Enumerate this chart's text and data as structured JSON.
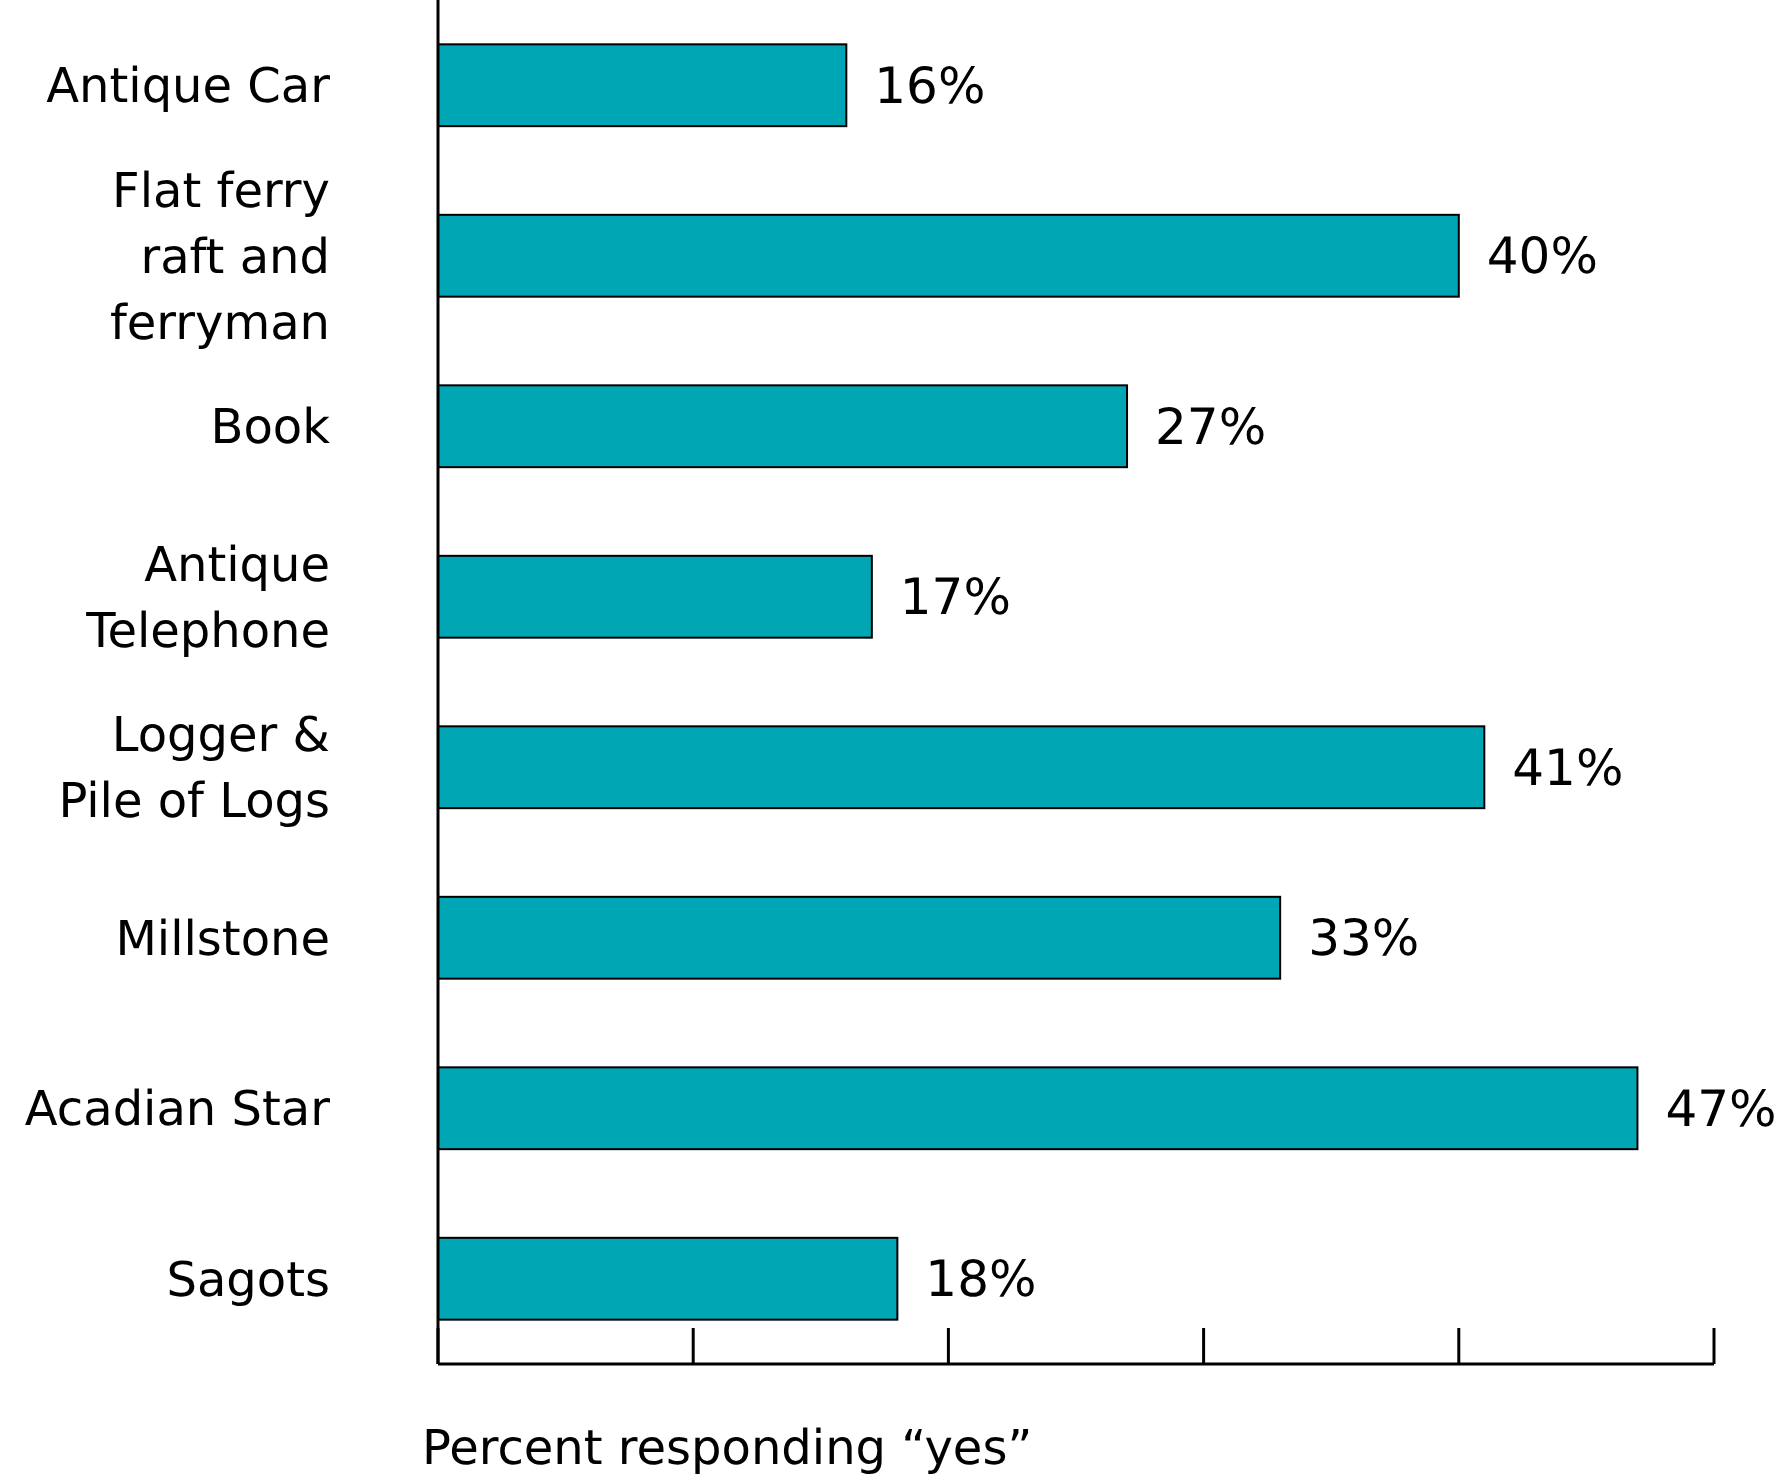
{
  "chart_data": {
    "type": "bar",
    "orientation": "horizontal",
    "xlabel": "Percent responding “yes”",
    "categories": [
      "Antique Car",
      "Flat ferry raft and ferryman",
      "Book",
      "Antique Telephone",
      "Logger & Pile of Logs",
      "Millstone",
      "Acadian Star",
      "Sagots"
    ],
    "values": [
      16,
      40,
      27,
      17,
      41,
      33,
      47,
      18
    ],
    "value_labels": [
      "16%",
      "40%",
      "27%",
      "17%",
      "41%",
      "33%",
      "47%",
      "18%"
    ],
    "color": "#00a6b4",
    "xlim": [
      0,
      50
    ],
    "tick_labels": "y"
  }
}
